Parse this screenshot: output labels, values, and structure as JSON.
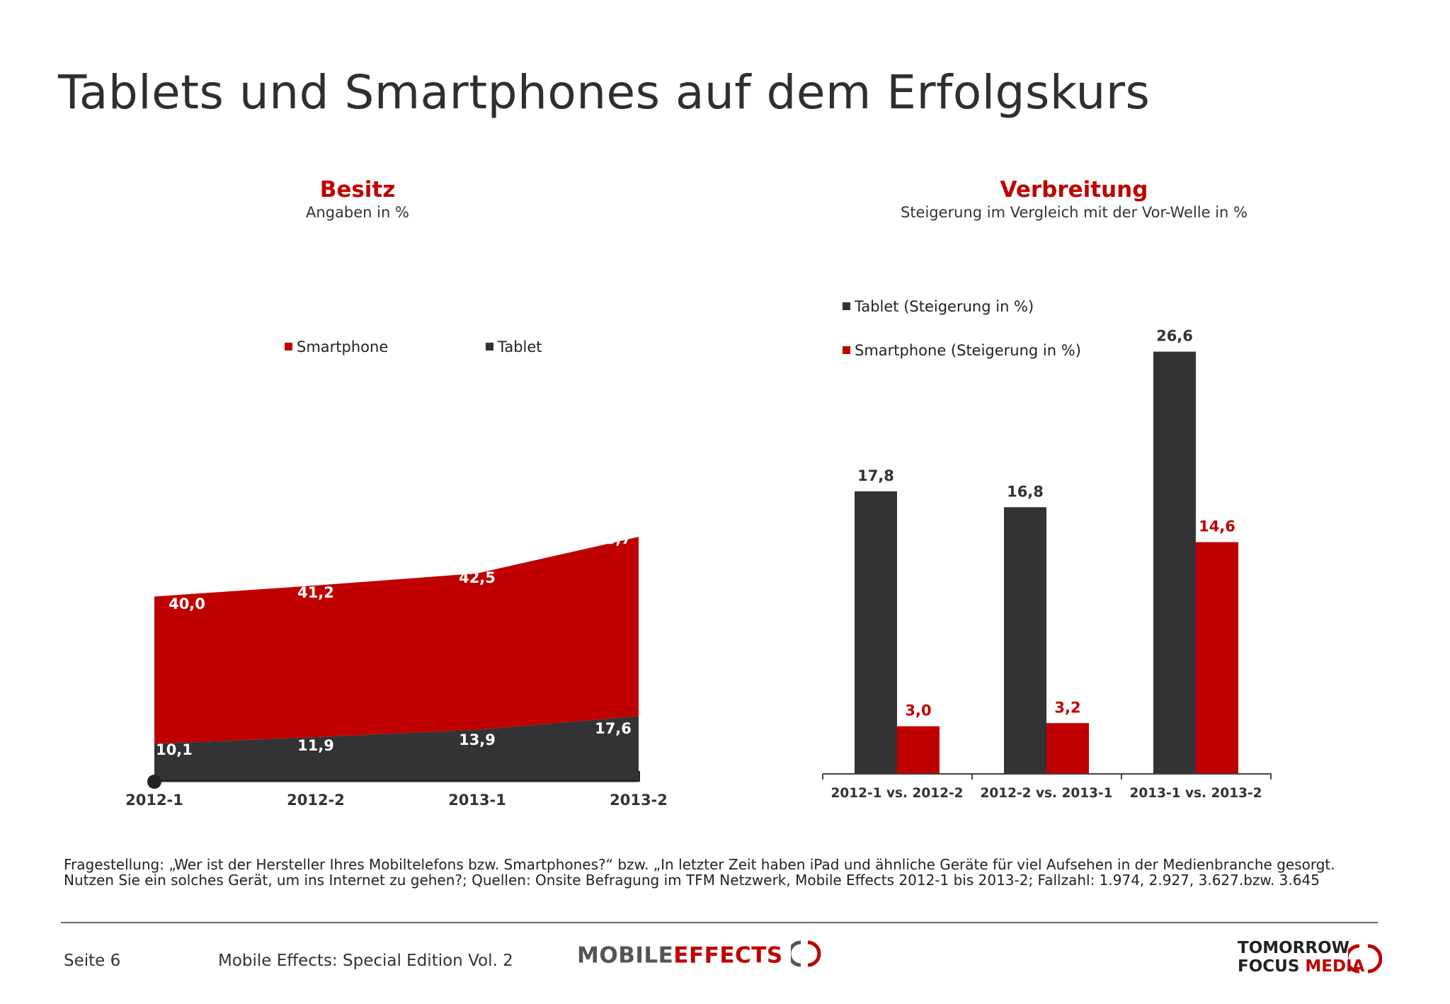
{
  "page": {
    "title": "Tablets und Smartphones auf dem Erfolgskurs",
    "footnote": "Fragestellung: „Wer ist der Hersteller Ihres Mobiltelefons bzw. Smartphones?“ bzw. „In letzter Zeit haben iPad und ähnliche Geräte für viel Aufsehen in der Medienbranche gesorgt. Nutzen Sie ein solches Gerät, um ins Internet zu gehen?; Quellen: Onsite Befragung im TFM Netzwerk, Mobile Effects 2012-1 bis 2013-2; Fallzahl: 1.974, 2.927, 3.627.bzw. 3.645",
    "footer_page": "Seite 6",
    "footer_edition": "Mobile Effects: Special Edition Vol. 2",
    "logo_mobile_effects": {
      "part1": "MOBILE",
      "part2": "EFFECTS"
    },
    "logo_tfm": {
      "line1": "TOMORROW",
      "line2a": "FOCUS",
      "line2b": "MEDIA"
    }
  },
  "colors": {
    "accent_red": "#c00000",
    "dark": "#333335",
    "logo_gray": "#555555"
  },
  "chart_data": [
    {
      "type": "area",
      "title": "Besitz",
      "subtitle": "Angaben in %",
      "categories": [
        "2012-1",
        "2012-2",
        "2013-1",
        "2013-2"
      ],
      "stacked": true,
      "series": [
        {
          "name": "Tablet",
          "values": [
            10.1,
            11.9,
            13.9,
            17.6
          ],
          "labels": [
            "10,1",
            "11,9",
            "13,9",
            "17,6"
          ],
          "color": "#333335"
        },
        {
          "name": "Smartphone",
          "values": [
            40.0,
            41.2,
            42.5,
            48.7
          ],
          "labels": [
            "40,0",
            "41,2",
            "42,5",
            "48,7"
          ],
          "color": "#c00000"
        }
      ],
      "legend": [
        {
          "name": "Smartphone",
          "color": "#c00000"
        },
        {
          "name": "Tablet",
          "color": "#333335"
        }
      ],
      "legend_position": "top",
      "ylim": [
        0,
        80
      ],
      "grid": false
    },
    {
      "type": "bar",
      "title": "Verbreitung",
      "subtitle": "Steigerung im Vergleich mit der Vor-Welle in %",
      "categories": [
        "2012-1 vs. 2012-2",
        "2012-2 vs. 2013-1",
        "2013-1 vs. 2013-2"
      ],
      "series": [
        {
          "name": "Tablet (Steigerung in %)",
          "values": [
            17.8,
            16.8,
            26.6
          ],
          "labels": [
            "17,8",
            "16,8",
            "26,6"
          ],
          "color": "#333335"
        },
        {
          "name": "Smartphone (Steigerung in %)",
          "values": [
            3.0,
            3.2,
            14.6
          ],
          "labels": [
            "3,0",
            "3,2",
            "14,6"
          ],
          "color": "#c00000"
        }
      ],
      "legend_position": "top-left",
      "ylim": [
        0,
        30
      ],
      "grid": false
    }
  ]
}
